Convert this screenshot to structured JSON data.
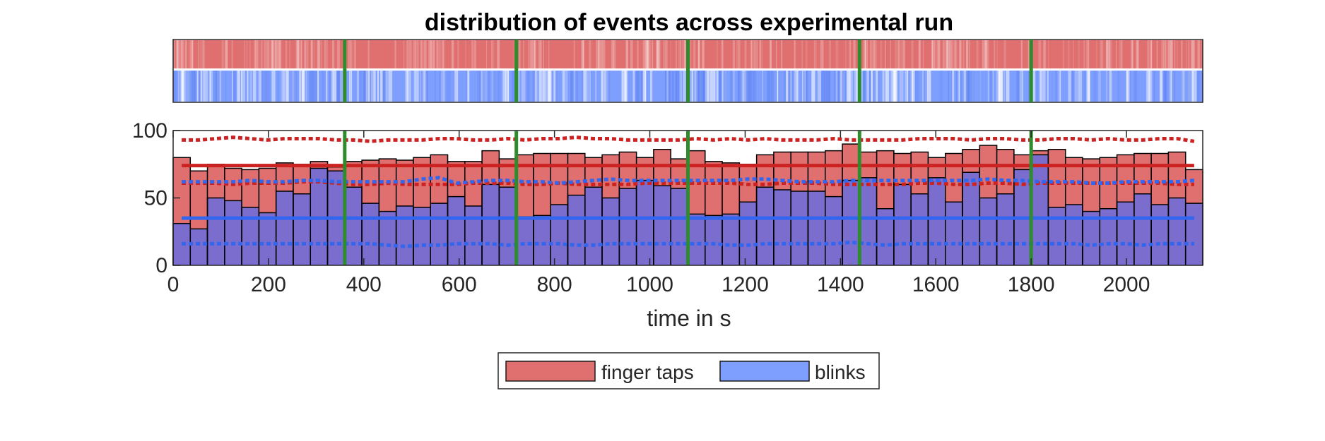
{
  "chart_data": {
    "type": "bar",
    "title": "distribution of events across experimental run",
    "xlabel": "time in s",
    "ylabel": "",
    "xlim": [
      0,
      2160
    ],
    "ylim": [
      0,
      100
    ],
    "xticks": [
      "0",
      "200",
      "400",
      "600",
      "800",
      "1000",
      "1200",
      "1400",
      "1600",
      "1800",
      "2000"
    ],
    "yticks": [
      "0",
      "50",
      "100"
    ],
    "bin_width": 36,
    "bin_starts": [
      0,
      36,
      72,
      108,
      144,
      180,
      216,
      252,
      288,
      324,
      360,
      396,
      432,
      468,
      504,
      540,
      576,
      612,
      648,
      684,
      720,
      756,
      792,
      828,
      864,
      900,
      936,
      972,
      1008,
      1044,
      1080,
      1116,
      1152,
      1188,
      1224,
      1260,
      1296,
      1332,
      1368,
      1404,
      1440,
      1476,
      1512,
      1548,
      1584,
      1620,
      1656,
      1692,
      1728,
      1764,
      1800,
      1836,
      1872,
      1908,
      1944,
      1980,
      2016,
      2052,
      2088,
      2124
    ],
    "series": [
      {
        "name": "finger taps",
        "color": "#e07070",
        "values": [
          80,
          70,
          75,
          72,
          71,
          72,
          76,
          75,
          77,
          73,
          77,
          78,
          79,
          78,
          80,
          82,
          77,
          77,
          85,
          79,
          82,
          83,
          83,
          83,
          80,
          82,
          84,
          80,
          86,
          79,
          85,
          77,
          76,
          75,
          82,
          84,
          84,
          84,
          85,
          90,
          84,
          85,
          83,
          84,
          80,
          83,
          86,
          89,
          86,
          82,
          85,
          86,
          80,
          79,
          80,
          82,
          83,
          83,
          84,
          71
        ],
        "mean": 74,
        "band_upper": [
          93,
          93,
          94,
          95,
          94,
          93,
          94,
          94,
          94,
          93,
          93,
          92,
          93,
          93,
          93,
          94,
          94,
          93,
          93,
          94,
          93,
          94,
          94,
          95,
          94,
          94,
          93,
          93,
          93,
          93,
          94,
          93,
          94,
          93,
          94,
          93,
          93,
          93,
          94,
          93,
          93,
          93,
          93,
          94,
          94,
          94,
          93,
          94,
          94,
          93,
          93,
          94,
          94,
          93,
          94,
          93,
          93,
          94,
          94,
          92
        ],
        "band_lower": [
          61,
          61,
          61,
          60,
          61,
          61,
          61,
          62,
          62,
          61,
          60,
          60,
          61,
          60,
          60,
          60,
          60,
          61,
          61,
          61,
          60,
          60,
          61,
          60,
          60,
          60,
          60,
          61,
          61,
          61,
          61,
          61,
          61,
          60,
          60,
          61,
          61,
          61,
          60,
          60,
          60,
          60,
          60,
          61,
          61,
          60,
          60,
          61,
          61,
          60,
          61,
          61,
          61,
          61,
          61,
          61,
          61,
          61,
          60,
          60
        ]
      },
      {
        "name": "blinks",
        "color": "#7f9fff",
        "values": [
          31,
          27,
          50,
          48,
          43,
          39,
          55,
          53,
          72,
          70,
          58,
          46,
          40,
          44,
          43,
          46,
          51,
          44,
          60,
          58,
          36,
          37,
          45,
          52,
          58,
          50,
          57,
          63,
          59,
          57,
          38,
          37,
          38,
          47,
          58,
          56,
          55,
          55,
          51,
          63,
          65,
          42,
          60,
          53,
          65,
          47,
          69,
          50,
          53,
          71,
          82,
          43,
          45,
          40,
          42,
          47,
          53,
          45,
          50,
          46
        ],
        "mean": 35,
        "band_upper": [
          62,
          62,
          62,
          62,
          63,
          62,
          62,
          63,
          63,
          62,
          62,
          62,
          62,
          62,
          64,
          65,
          61,
          62,
          63,
          63,
          62,
          62,
          61,
          62,
          63,
          64,
          63,
          63,
          63,
          63,
          63,
          63,
          63,
          64,
          64,
          63,
          62,
          62,
          62,
          63,
          63,
          63,
          63,
          63,
          63,
          63,
          63,
          64,
          63,
          63,
          62,
          62,
          62,
          61,
          61,
          62,
          62,
          62,
          62,
          63
        ],
        "band_lower": [
          16,
          16,
          16,
          16,
          16,
          16,
          16,
          16,
          16,
          16,
          16,
          16,
          15,
          14,
          15,
          15,
          16,
          16,
          16,
          15,
          16,
          16,
          16,
          15,
          15,
          16,
          16,
          16,
          16,
          16,
          16,
          16,
          15,
          15,
          16,
          16,
          16,
          16,
          16,
          17,
          16,
          15,
          16,
          16,
          16,
          16,
          16,
          16,
          16,
          16,
          16,
          16,
          16,
          15,
          16,
          16,
          15,
          16,
          16,
          16
        ]
      }
    ],
    "overlap_color": "#7a6dcd",
    "run_boundaries": [
      360,
      720,
      1080,
      1440,
      1800
    ],
    "run_boundary_color": "#2e8b2e",
    "mean_colors": {
      "finger taps": "#cc2222",
      "blinks": "#3366ee"
    },
    "raster": {
      "rows": [
        "finger taps",
        "blinks"
      ],
      "colors": [
        "#e07070",
        "#7f9fff"
      ]
    },
    "legend": {
      "placement": "bottom-center",
      "entries": [
        "finger taps",
        "blinks"
      ]
    },
    "grid": false
  }
}
